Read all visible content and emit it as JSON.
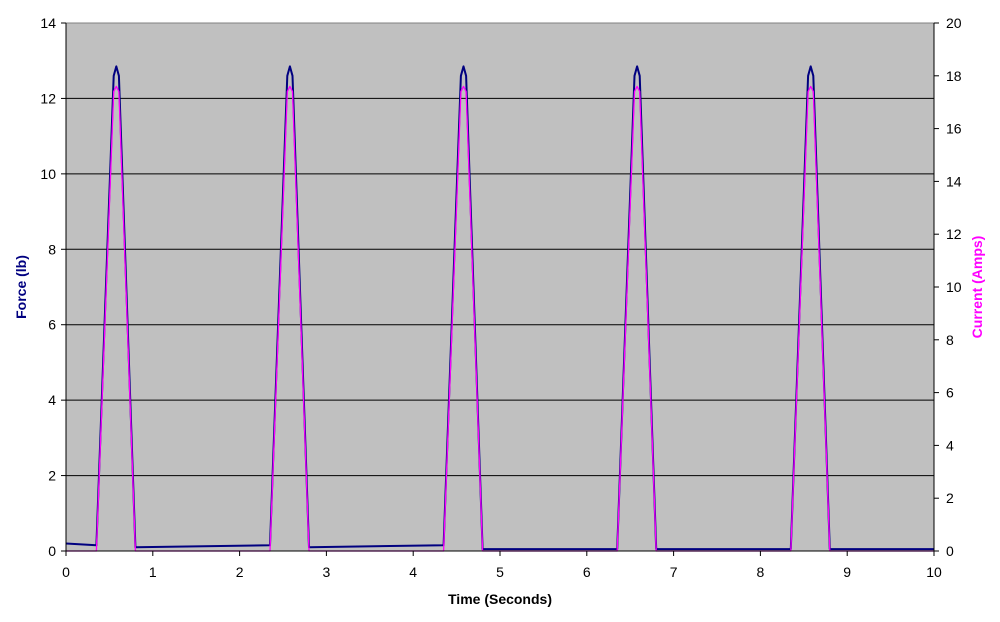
{
  "chart_data": {
    "type": "line",
    "title": "",
    "xlabel": "Time (Seconds)",
    "ylabel_left": "Force (lb)",
    "ylabel_right": "Current (Amps)",
    "xlim": [
      0,
      10
    ],
    "ylim_left": [
      0,
      14
    ],
    "ylim_right": [
      0,
      20
    ],
    "x_ticks": [
      "0",
      "1",
      "2",
      "3",
      "4",
      "5",
      "6",
      "7",
      "8",
      "9",
      "10"
    ],
    "y_left_ticks": [
      "0",
      "2",
      "4",
      "6",
      "8",
      "10",
      "12",
      "14"
    ],
    "y_right_ticks": [
      "0",
      "2",
      "4",
      "6",
      "8",
      "10",
      "12",
      "14",
      "16",
      "18",
      "20"
    ],
    "grid": "horizontal",
    "background_color": "#C0C0C0",
    "series": [
      {
        "name": "Force (lb)",
        "axis": "left",
        "color": "#000080",
        "x": [
          0,
          0.35,
          0.55,
          0.58,
          0.61,
          0.8,
          2.35,
          2.55,
          2.58,
          2.61,
          2.8,
          4.35,
          4.55,
          4.58,
          4.61,
          4.8,
          6.35,
          6.55,
          6.58,
          6.61,
          6.8,
          8.35,
          8.55,
          8.58,
          8.61,
          8.8,
          10
        ],
        "y": [
          0.2,
          0.15,
          12.6,
          12.85,
          12.6,
          0.1,
          0.15,
          12.6,
          12.85,
          12.6,
          0.1,
          0.15,
          12.6,
          12.85,
          12.6,
          0.05,
          0.05,
          12.6,
          12.85,
          12.6,
          0.05,
          0.05,
          12.6,
          12.85,
          12.6,
          0.05,
          0.05
        ]
      },
      {
        "name": "Current (Amps)",
        "axis": "right",
        "color": "#FF00FF",
        "x": [
          0,
          0.35,
          0.55,
          0.58,
          0.61,
          0.8,
          2.35,
          2.55,
          2.58,
          2.61,
          2.8,
          4.35,
          4.55,
          4.58,
          4.61,
          4.8,
          6.35,
          6.55,
          6.58,
          6.61,
          6.8,
          8.35,
          8.55,
          8.58,
          8.61,
          8.8,
          10
        ],
        "y": [
          0,
          0,
          17.4,
          17.6,
          17.4,
          0,
          0,
          17.4,
          17.6,
          17.4,
          0,
          0,
          17.4,
          17.6,
          17.4,
          0,
          0,
          17.4,
          17.6,
          17.4,
          0,
          0,
          17.4,
          17.6,
          17.4,
          0,
          0
        ]
      }
    ]
  }
}
